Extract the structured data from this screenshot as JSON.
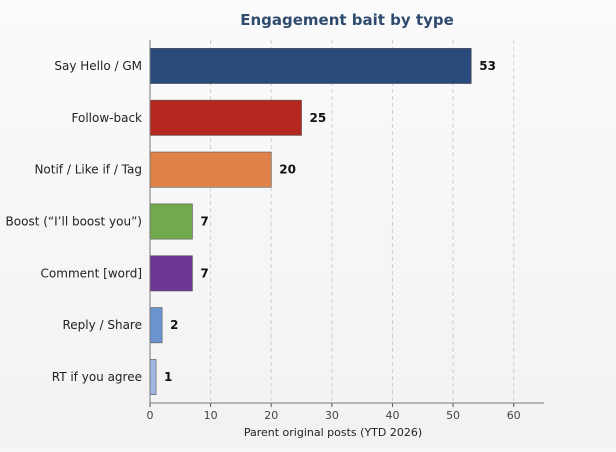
{
  "chart_data": {
    "type": "bar",
    "orientation": "horizontal",
    "title": "Engagement bait by type",
    "xlabel": "Parent original posts (YTD 2026)",
    "ylabel": "",
    "categories": [
      "Say Hello / GM",
      "Follow-back",
      "Notif / Like if / Tag",
      "Boost (“I’ll boost you”)",
      "Comment [word]",
      "Reply / Share",
      "RT if you agree"
    ],
    "values": [
      53,
      25,
      20,
      7,
      7,
      2,
      1
    ],
    "colors": [
      "#2a4a7b",
      "#b5281f",
      "#e0834a",
      "#72a94d",
      "#6d3596",
      "#6b93cf",
      "#9db7e1"
    ],
    "title_color": "#2f4b6e",
    "xlim": [
      0,
      65
    ],
    "xticks": [
      0,
      10,
      20,
      30,
      40,
      50,
      60
    ],
    "grid": "x, dashed",
    "legend": "none",
    "data_labels": true
  }
}
